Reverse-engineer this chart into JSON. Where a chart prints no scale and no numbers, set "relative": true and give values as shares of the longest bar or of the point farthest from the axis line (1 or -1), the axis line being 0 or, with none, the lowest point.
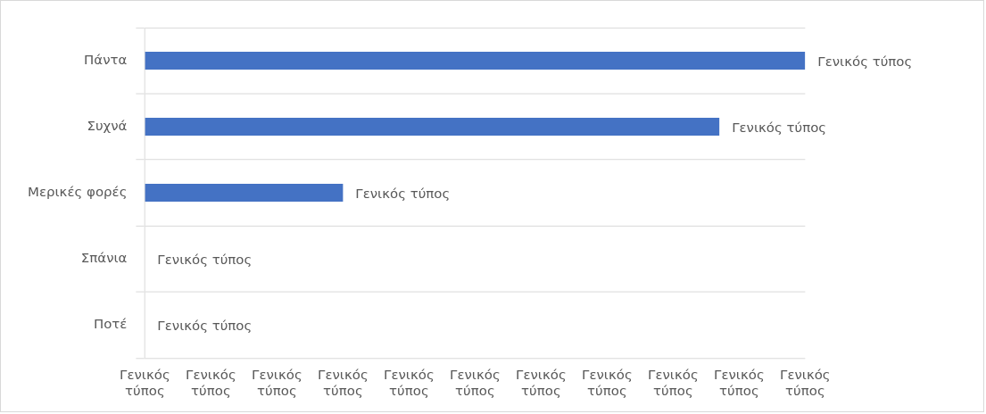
{
  "chart_data": {
    "type": "bar",
    "orientation": "horizontal",
    "relative": true,
    "categories": [
      "Πάντα",
      "Συχνά",
      "Μερικές φορές",
      "Σπάνια",
      "Ποτέ"
    ],
    "values": [
      1,
      0.87,
      0.3,
      0,
      0
    ],
    "color": "#4472c4",
    "annotations": [
      {
        "text": "Γενικός τύπος",
        "x": 1,
        "y": "Πάντα"
      },
      {
        "text": "Γενικός τύπος",
        "x": 0.87,
        "y": "Συχνά"
      },
      {
        "text": "Γενικός τύπος",
        "x": 0.3,
        "y": "Μερικές φορές"
      },
      {
        "text": "Γενικός τύπος",
        "x": 0,
        "y": "Σπάνια"
      },
      {
        "text": "Γενικός τύπος",
        "x": 0,
        "y": "Ποτέ"
      },
      "Γενικός τύπος",
      "Γενικός τύπος",
      "Γενικός τύπος",
      "Γενικός τύπος",
      "Γενικός τύπος",
      "Γενικός τύπος",
      "Γενικός τύπος",
      "Γενικός τύπος",
      "Γενικός τύπος",
      "Γενικός τύπος",
      "Γενικός τύπος"
    ],
    "grid": "y"
  }
}
